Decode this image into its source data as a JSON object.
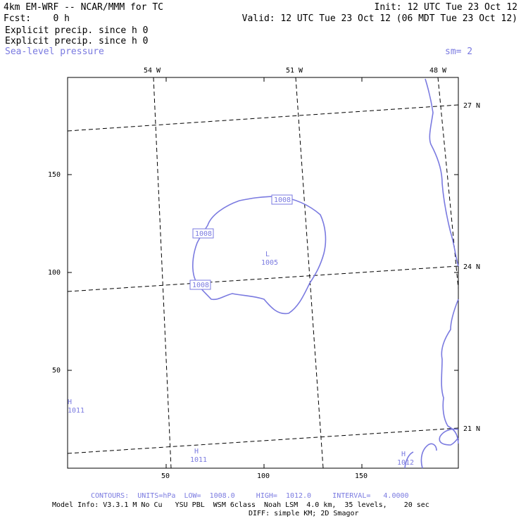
{
  "header": {
    "model_line": "4km EM-WRF -- NCAR/MMM for TC",
    "init": "Init: 12 UTC Tue 23 Oct 12",
    "fcst": "Fcst:    0 h",
    "valid": "Valid: 12 UTC Tue 23 Oct 12 (06 MDT Tue 23 Oct 12)",
    "field1": "Explicit precip. since h 0",
    "field2": "Explicit precip. since h 0",
    "field3": "Sea-level pressure",
    "smoothing": "sm= 2"
  },
  "map": {
    "x_ticks": [
      "50",
      "100",
      "150"
    ],
    "y_ticks": [
      "150",
      "100",
      "50"
    ],
    "lon_labels": [
      "54 W",
      "51 W",
      "48 W"
    ],
    "lat_labels": [
      "27 N",
      "24 N",
      "21 N"
    ],
    "contour_labels": [
      "1008",
      "1008",
      "1008"
    ],
    "low_marker": {
      "symbol": "L",
      "value": "1005"
    },
    "high_markers": [
      {
        "symbol": "H",
        "value": "1011"
      },
      {
        "symbol": "H",
        "value": "1011"
      },
      {
        "symbol": "H",
        "value": "1012"
      }
    ],
    "colors": {
      "contour": "#7a7ae0",
      "grid": "#000000"
    }
  },
  "footer": {
    "contours": "CONTOURS:  UNITS=hPa  LOW=  1008.0     HIGH=  1012.0     INTERVAL=   4.0000",
    "model_info": "Model Info: V3.3.1 M No Cu   YSU PBL  WSM 6class  Noah LSM  4.0 km,  35 levels,    20 sec",
    "diff": "DIFF: simple KM; 2D Smagor"
  }
}
